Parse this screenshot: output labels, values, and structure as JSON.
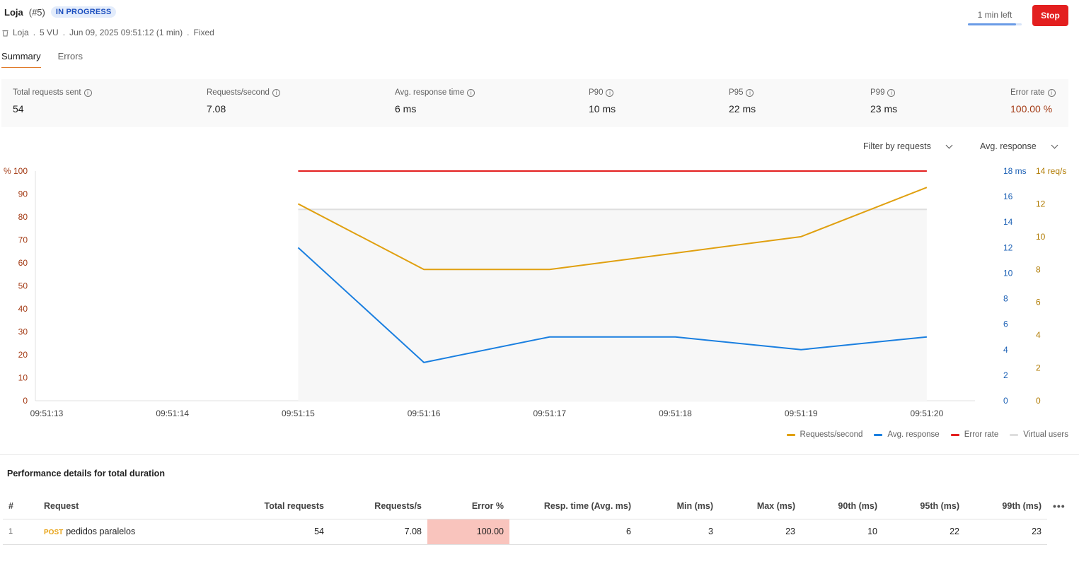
{
  "header": {
    "title": "Loja",
    "run_id": "(#5)",
    "status": "IN PROGRESS",
    "collection": "Loja",
    "vu": "5 VU",
    "datetime": "Jun 09, 2025 09:51:12 (1 min)",
    "profile": "Fixed",
    "sep": "."
  },
  "timer": {
    "label": "1 min left",
    "progress": 0.9
  },
  "stop_label": "Stop",
  "tabs": [
    {
      "label": "Summary"
    },
    {
      "label": "Errors"
    }
  ],
  "stats": [
    {
      "label": "Total requests sent",
      "value": "54"
    },
    {
      "label": "Requests/second",
      "value": "7.08"
    },
    {
      "label": "Avg. response time",
      "value": "6 ms"
    },
    {
      "label": "P90",
      "value": "10 ms"
    },
    {
      "label": "P95",
      "value": "22 ms"
    },
    {
      "label": "P99",
      "value": "23 ms"
    },
    {
      "label": "Error rate",
      "value": "100.00 %"
    }
  ],
  "filters": {
    "requests": "Filter by requests",
    "metric": "Avg. response"
  },
  "chart_data": {
    "type": "line",
    "x": [
      "09:51:13",
      "09:51:14",
      "09:51:15",
      "09:51:16",
      "09:51:17",
      "09:51:18",
      "09:51:19",
      "09:51:20"
    ],
    "axes": {
      "left": {
        "unit": "%",
        "ticks": [
          0,
          10,
          20,
          30,
          40,
          50,
          60,
          70,
          80,
          90,
          100
        ],
        "range": [
          0,
          100
        ]
      },
      "right_ms": {
        "unit": "ms",
        "ticks": [
          0,
          2,
          4,
          6,
          8,
          10,
          12,
          14,
          16,
          18
        ],
        "range": [
          0,
          18
        ]
      },
      "right_rps": {
        "unit": "req/s",
        "ticks": [
          0,
          2,
          4,
          6,
          8,
          10,
          12,
          14
        ],
        "range": [
          0,
          14
        ]
      }
    },
    "series": [
      {
        "name": "Requests/second",
        "axis": "right_rps",
        "color": "#e0a010",
        "values": [
          null,
          null,
          12,
          8,
          8,
          9,
          10,
          13
        ]
      },
      {
        "name": "Avg. response",
        "axis": "right_ms",
        "color": "#1a7fe0",
        "values": [
          null,
          null,
          12,
          3,
          5,
          5,
          4,
          5
        ]
      },
      {
        "name": "Error rate",
        "axis": "left",
        "color": "#e31f1f",
        "values": [
          null,
          null,
          100,
          100,
          100,
          100,
          100,
          100
        ]
      },
      {
        "name": "Virtual users",
        "axis": "left",
        "color": "#dedede",
        "values": [
          null,
          null,
          83.3,
          83.3,
          83.3,
          83.3,
          83.3,
          83.3
        ]
      }
    ],
    "grid": false,
    "legend_position": "bottom-right"
  },
  "perf": {
    "title": "Performance details for total duration",
    "columns": [
      "#",
      "Request",
      "Total requests",
      "Requests/s",
      "Error %",
      "Resp. time (Avg. ms)",
      "Min (ms)",
      "Max (ms)",
      "90th (ms)",
      "95th (ms)",
      "99th (ms)"
    ],
    "rows": [
      {
        "index": "1",
        "method": "POST",
        "name": "pedidos paralelos",
        "total": "54",
        "rps": "7.08",
        "error": "100.00",
        "avg": "6",
        "min": "3",
        "max": "23",
        "p90": "10",
        "p95": "22",
        "p99": "23"
      }
    ],
    "more_label": "•••"
  },
  "icons": {
    "collection": "trash-can-icon",
    "info": "info-icon",
    "more": "more-horizontal-icon"
  }
}
